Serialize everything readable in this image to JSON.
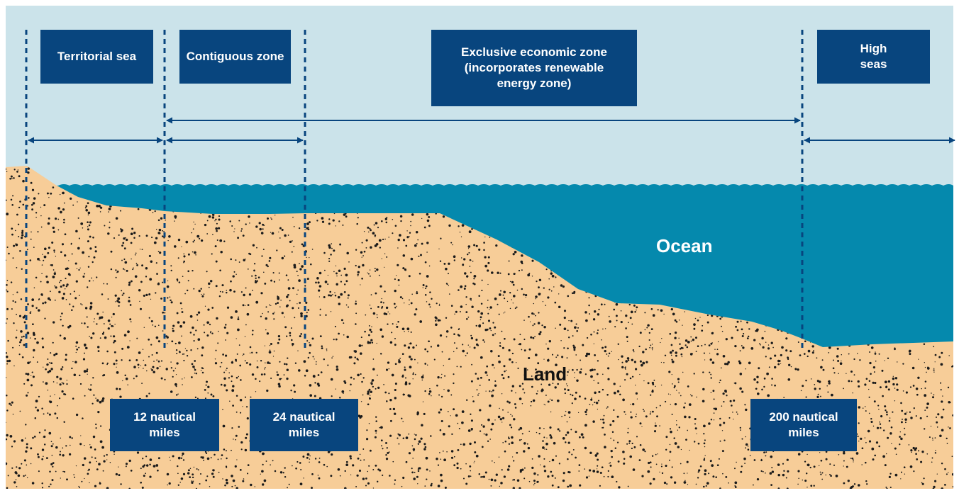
{
  "zones": {
    "territorial_sea": "Territorial sea",
    "contiguous_zone": "Contiguous zone",
    "eez": "Exclusive economic zone (incorporates renewable energy zone)",
    "high_seas": "High seas"
  },
  "distances": {
    "d12": "12 nautical miles",
    "d24": "24 nautical miles",
    "d200": "200 nautical miles"
  },
  "labels": {
    "ocean": "Ocean",
    "land": "Land"
  },
  "colors": {
    "sky": "#cbe3ea",
    "ocean": "#0589ad",
    "sand": "#f7cd98",
    "dots": "#1b1b1b",
    "box": "#08457e",
    "lines": "#08457e"
  }
}
